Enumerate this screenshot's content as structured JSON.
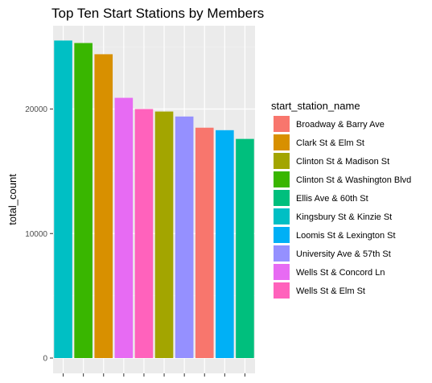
{
  "chart_data": {
    "type": "bar",
    "title": "Top Ten Start Stations by Members",
    "xlabel": "",
    "ylabel": "total_count",
    "ylim": [
      0,
      27000
    ],
    "yticks": [
      {
        "value": 0,
        "label": "0"
      },
      {
        "value": 10000,
        "label": "10000"
      },
      {
        "value": 20000,
        "label": "20000"
      }
    ],
    "grid": true,
    "legend_position": "right",
    "legend_title": "start_station_name",
    "bars": [
      {
        "station": "Kingsbury St & Kinzie St",
        "value": 25500,
        "color": "#00BFC4"
      },
      {
        "station": "Clinton St & Washington Blvd",
        "value": 25300,
        "color": "#39B600"
      },
      {
        "station": "Clark St & Elm St",
        "value": 24400,
        "color": "#D89000"
      },
      {
        "station": "Wells St & Concord Ln",
        "value": 20900,
        "color": "#E76BF3"
      },
      {
        "station": "Wells St & Elm St",
        "value": 20000,
        "color": "#FF62BC"
      },
      {
        "station": "Clinton St & Madison St",
        "value": 19800,
        "color": "#A3A500"
      },
      {
        "station": "University Ave & 57th St",
        "value": 19400,
        "color": "#9590FF"
      },
      {
        "station": "Broadway & Barry Ave",
        "value": 18500,
        "color": "#F8766D"
      },
      {
        "station": "Loomis St & Lexington St",
        "value": 18300,
        "color": "#00B0F6"
      },
      {
        "station": "Ellis Ave & 60th St",
        "value": 17600,
        "color": "#00BF7D"
      }
    ],
    "legend": [
      {
        "label": "Broadway & Barry Ave",
        "color": "#F8766D"
      },
      {
        "label": "Clark St & Elm St",
        "color": "#D89000"
      },
      {
        "label": "Clinton St & Madison St",
        "color": "#A3A500"
      },
      {
        "label": "Clinton St & Washington Blvd",
        "color": "#39B600"
      },
      {
        "label": "Ellis Ave & 60th St",
        "color": "#00BF7D"
      },
      {
        "label": "Kingsbury St & Kinzie St",
        "color": "#00BFC4"
      },
      {
        "label": "Loomis St & Lexington St",
        "color": "#00B0F6"
      },
      {
        "label": "University Ave & 57th St",
        "color": "#9590FF"
      },
      {
        "label": "Wells St & Concord Ln",
        "color": "#E76BF3"
      },
      {
        "label": "Wells St & Elm St",
        "color": "#FF62BC"
      }
    ]
  }
}
